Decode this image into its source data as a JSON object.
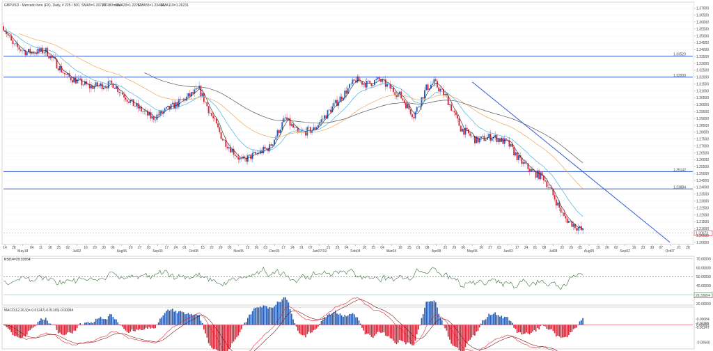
{
  "header": {
    "symbol_line": "GBPUSD - Mercado livre (FX), Daily, # 225 / 500,",
    "sma5": "SMA5=1.20713",
    "atr": "ATR80mdia",
    "ema20": "EMA20=1.22257",
    "ema55": "EMA55=1.23404",
    "ema110": "EMA110=1.26231"
  },
  "rsi_header": "RSI14=29.33654",
  "macd_header": "MACD(12,26,9)=-0.01247|-0.01165|-0.00084",
  "colors": {
    "bull": "#2b5fb5",
    "bear": "#d9283a",
    "sma5": "#222222",
    "ema20": "#46b0e0",
    "ema55": "#f2a65a",
    "ema110": "#555555",
    "level_line": "#2f58d3",
    "trendline": "#2f58d3",
    "rsi_line": "#3c6e3c",
    "macd_line": "#d9283a",
    "signal_line": "#7a1a1a"
  },
  "chart_data": [
    {
      "type": "candlestick",
      "title": "",
      "ylim": [
        1.2,
        1.3725
      ],
      "y_ticks": [
        "1.37000",
        "1.36500",
        "1.36000",
        "1.35500",
        "1.35000",
        "1.34500",
        "1.34000",
        "1.33500",
        "1.33000",
        "1.32500",
        "1.32000",
        "1.31500",
        "1.31000",
        "1.30500",
        "1.30000",
        "1.29500",
        "1.29000",
        "1.28500",
        "1.28000",
        "1.27500",
        "1.27000",
        "1.26500",
        "1.26000",
        "1.25500",
        "1.25000",
        "1.24500",
        "1.24000",
        "1.23500",
        "1.23000",
        "1.22500",
        "1.22000",
        "1.21500",
        "1.21000",
        "1.20500",
        "1.20000"
      ],
      "x_ticks": [
        "14",
        "28",
        "May18",
        "04",
        "11",
        "18",
        "25",
        "02",
        "Jul02",
        "16",
        "23",
        "30",
        "06",
        "Aug06",
        "20",
        "27",
        "03",
        "Sep03",
        "17",
        "24",
        "01",
        "Oct08",
        "15",
        "22",
        "29",
        "05",
        "Nov05",
        "19",
        "26",
        "03",
        "Dec03",
        "17",
        "24",
        "31",
        "07",
        "Jan07/19",
        "21",
        "28",
        "04",
        "Feb04",
        "18",
        "25",
        "04",
        "Mar04",
        "18",
        "25",
        "01",
        "08",
        "Apr08",
        "22",
        "29",
        "06",
        "May06",
        "20",
        "27",
        "03",
        "Jun03",
        "17",
        "24",
        "01",
        "08",
        "Jul08",
        "22",
        "29",
        "05",
        "Aug05",
        "19",
        "26",
        "02",
        "Sep02",
        "16",
        "23",
        "30",
        "07",
        "Oct07",
        "21",
        "28"
      ],
      "levels": [
        {
          "value": 1.3352,
          "label": "1.33520"
        },
        {
          "value": 1.32,
          "label": "1.32000"
        },
        {
          "value": 1.2514,
          "label": "1.25142"
        },
        {
          "value": 1.2388,
          "label": "1.23884"
        }
      ],
      "last_price": {
        "value": 1.2067,
        "label": "1.20673"
      },
      "trendline": {
        "from_date": "May06",
        "from_value": 1.3165,
        "to_date": "Oct07",
        "to_value": 1.2
      }
    },
    {
      "type": "line",
      "name": "RSI14",
      "ylim": [
        20,
        72
      ],
      "y_ticks": [
        "70.00000",
        "60.00000",
        "50.00000",
        "40.00000",
        "30.00000",
        "20.00000"
      ],
      "overbought": 70,
      "middle": 50,
      "oversold": 30,
      "last_value": {
        "value": 29.3365,
        "label": "29.33654"
      }
    },
    {
      "type": "histogram",
      "name": "MACD(12,26,9)",
      "ylim": [
        -0.0065,
        0.0035
      ],
      "y_ticks": [
        "0.00000",
        "-0.00500"
      ],
      "zero_line": 0,
      "last_values": [
        {
          "label": "-0.00084"
        },
        {
          "label": "-0.01165"
        },
        {
          "label": "-0.01247"
        }
      ]
    }
  ]
}
